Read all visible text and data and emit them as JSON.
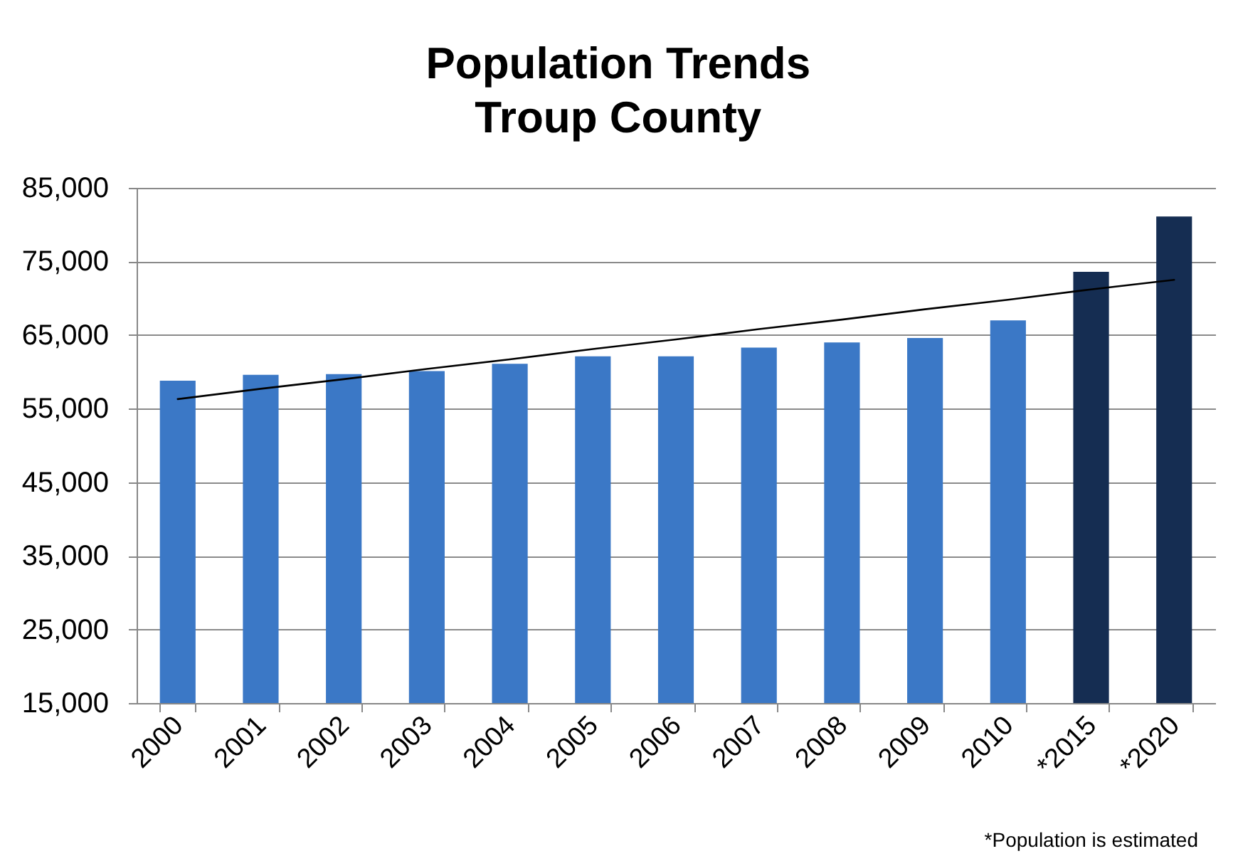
{
  "chart_data": {
    "type": "bar",
    "title": "Population Trends\nTroup County",
    "categories": [
      "2000",
      "2001",
      "2002",
      "2003",
      "2004",
      "2005",
      "2006",
      "2007",
      "2008",
      "2009",
      "2010",
      "*2015",
      "*2020"
    ],
    "series": [
      {
        "values": [
          58800,
          59600,
          59700,
          60100,
          61100,
          62100,
          62100,
          63300,
          64000,
          64600,
          67000,
          73600,
          81100
        ],
        "colors": [
          "#3b78c6",
          "#3b78c6",
          "#3b78c6",
          "#3b78c6",
          "#3b78c6",
          "#3b78c6",
          "#3b78c6",
          "#3b78c6",
          "#3b78c6",
          "#3b78c6",
          "#3b78c6",
          "#152d52",
          "#152d52"
        ]
      },
      {
        "type": "line",
        "values": [
          56300,
          57700,
          59000,
          60400,
          61700,
          63100,
          64400,
          65800,
          67100,
          68500,
          69800,
          71200,
          72500
        ],
        "color": "#000000"
      }
    ],
    "ylim": [
      15000,
      85000
    ],
    "yticks": [
      {
        "value": 15000,
        "label": "15,000"
      },
      {
        "value": 25000,
        "label": "25,000"
      },
      {
        "value": 35000,
        "label": "35,000"
      },
      {
        "value": 45000,
        "label": "45,000"
      },
      {
        "value": 55000,
        "label": "55,000"
      },
      {
        "value": 65000,
        "label": "65,000"
      },
      {
        "value": 75000,
        "label": "75,000"
      },
      {
        "value": 85000,
        "label": "85,000"
      }
    ],
    "grid": "y",
    "annotations": [
      "*Population is estimated"
    ]
  }
}
